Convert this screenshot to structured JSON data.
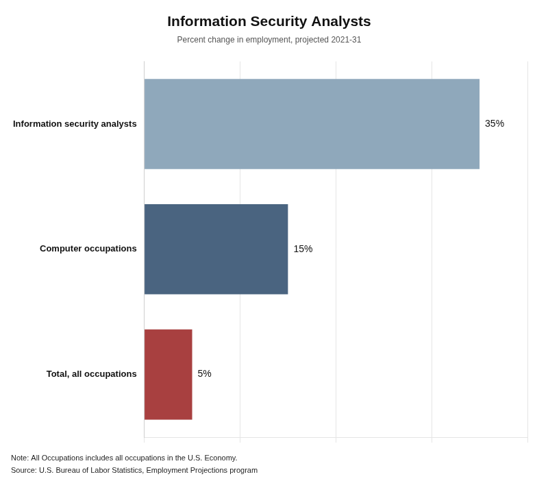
{
  "chart_data": {
    "type": "bar",
    "orientation": "horizontal",
    "title": "Information Security Analysts",
    "subtitle": "Percent change in employment, projected 2021-31",
    "categories": [
      "Total, all occupations",
      "Computer occupations",
      "Information security analysts"
    ],
    "values": [
      5,
      15,
      35
    ],
    "value_labels": [
      "5%",
      "15%",
      "35%"
    ],
    "data_labels": true,
    "colors": [
      "#a84040",
      "#4a6480",
      "#8fa8bb"
    ],
    "xlim": [
      0,
      40
    ],
    "xticks": [
      0,
      10,
      20,
      30,
      40
    ],
    "grid": true,
    "tick_labels": "y",
    "notes": [
      "Note: All Occupations includes all occupations in the U.S. Economy.",
      "Source: U.S. Bureau of Labor Statistics, Employment Projections program"
    ]
  }
}
